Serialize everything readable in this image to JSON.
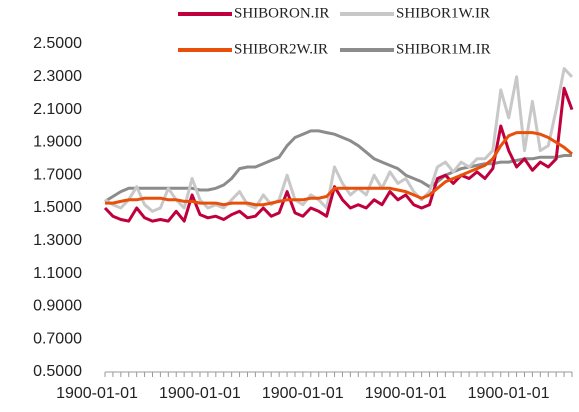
{
  "chart_data": {
    "type": "line",
    "categories": [
      "1900-01-01",
      null,
      null,
      null,
      null,
      null,
      null,
      null,
      null,
      null,
      null,
      null,
      null,
      "1900-01-01",
      null,
      null,
      null,
      null,
      null,
      null,
      null,
      null,
      null,
      null,
      null,
      null,
      "1900-01-01",
      null,
      null,
      null,
      null,
      null,
      null,
      null,
      null,
      null,
      null,
      null,
      null,
      "1900-01-01",
      null,
      null,
      null,
      null,
      null,
      null,
      null,
      null,
      null,
      null,
      null,
      null,
      "1900-01-01",
      null,
      null,
      null,
      null,
      null,
      null,
      null
    ],
    "series": [
      {
        "name": "SHIBORON.IR",
        "color": "#c0003c",
        "values": [
          1.5,
          1.45,
          1.43,
          1.42,
          1.5,
          1.44,
          1.42,
          1.43,
          1.42,
          1.48,
          1.42,
          1.58,
          1.46,
          1.44,
          1.45,
          1.43,
          1.46,
          1.48,
          1.44,
          1.45,
          1.5,
          1.45,
          1.47,
          1.6,
          1.47,
          1.45,
          1.5,
          1.48,
          1.45,
          1.63,
          1.55,
          1.5,
          1.52,
          1.5,
          1.55,
          1.52,
          1.6,
          1.55,
          1.58,
          1.52,
          1.5,
          1.52,
          1.68,
          1.7,
          1.65,
          1.7,
          1.68,
          1.72,
          1.68,
          1.74,
          2.0,
          1.85,
          1.75,
          1.8,
          1.73,
          1.78,
          1.75,
          1.8,
          2.23,
          2.1
        ]
      },
      {
        "name": "SHIBOR1W.IR",
        "color": "#c8c8c8",
        "values": [
          1.55,
          1.52,
          1.5,
          1.55,
          1.63,
          1.52,
          1.48,
          1.5,
          1.62,
          1.55,
          1.5,
          1.68,
          1.55,
          1.5,
          1.52,
          1.5,
          1.55,
          1.6,
          1.52,
          1.5,
          1.58,
          1.52,
          1.55,
          1.7,
          1.55,
          1.52,
          1.58,
          1.55,
          1.5,
          1.75,
          1.65,
          1.58,
          1.62,
          1.58,
          1.7,
          1.62,
          1.72,
          1.65,
          1.68,
          1.6,
          1.55,
          1.6,
          1.75,
          1.78,
          1.72,
          1.78,
          1.75,
          1.8,
          1.8,
          1.85,
          2.22,
          2.05,
          2.3,
          1.85,
          2.15,
          1.85,
          1.88,
          2.1,
          2.35,
          2.3
        ]
      },
      {
        "name": "SHIBOR2W.IR",
        "color": "#e8500a",
        "values": [
          1.53,
          1.53,
          1.54,
          1.55,
          1.55,
          1.56,
          1.56,
          1.56,
          1.55,
          1.55,
          1.54,
          1.54,
          1.53,
          1.53,
          1.53,
          1.52,
          1.53,
          1.53,
          1.53,
          1.52,
          1.52,
          1.53,
          1.54,
          1.55,
          1.55,
          1.55,
          1.56,
          1.56,
          1.57,
          1.62,
          1.62,
          1.62,
          1.62,
          1.62,
          1.62,
          1.62,
          1.62,
          1.61,
          1.6,
          1.58,
          1.56,
          1.58,
          1.62,
          1.66,
          1.68,
          1.7,
          1.72,
          1.74,
          1.76,
          1.8,
          1.88,
          1.94,
          1.96,
          1.96,
          1.96,
          1.95,
          1.93,
          1.9,
          1.87,
          1.83
        ]
      },
      {
        "name": "SHIBOR1M.IR",
        "color": "#8c8c8c",
        "values": [
          1.54,
          1.57,
          1.6,
          1.62,
          1.62,
          1.62,
          1.62,
          1.62,
          1.62,
          1.62,
          1.62,
          1.62,
          1.61,
          1.61,
          1.62,
          1.64,
          1.68,
          1.74,
          1.75,
          1.75,
          1.77,
          1.79,
          1.81,
          1.88,
          1.93,
          1.95,
          1.97,
          1.97,
          1.96,
          1.95,
          1.93,
          1.91,
          1.88,
          1.84,
          1.8,
          1.78,
          1.76,
          1.74,
          1.7,
          1.68,
          1.66,
          1.63,
          1.66,
          1.7,
          1.72,
          1.74,
          1.75,
          1.76,
          1.77,
          1.77,
          1.78,
          1.78,
          1.79,
          1.8,
          1.8,
          1.81,
          1.81,
          1.81,
          1.82,
          1.82
        ]
      }
    ],
    "ylim": [
      0.5,
      2.5
    ],
    "yticks": [
      {
        "value": 0.5,
        "label": "0.5000"
      },
      {
        "value": 0.7,
        "label": "0.7000"
      },
      {
        "value": 0.9,
        "label": "0.9000"
      },
      {
        "value": 1.1,
        "label": "1.1000"
      },
      {
        "value": 1.3,
        "label": "1.3000"
      },
      {
        "value": 1.5,
        "label": "1.5000"
      },
      {
        "value": 1.7,
        "label": "1.7000"
      },
      {
        "value": 1.9,
        "label": "1.9000"
      },
      {
        "value": 2.1,
        "label": "2.1000"
      },
      {
        "value": 2.3,
        "label": "2.3000"
      },
      {
        "value": 2.5,
        "label": "2.5000"
      }
    ],
    "grid": false,
    "legend": "top"
  }
}
